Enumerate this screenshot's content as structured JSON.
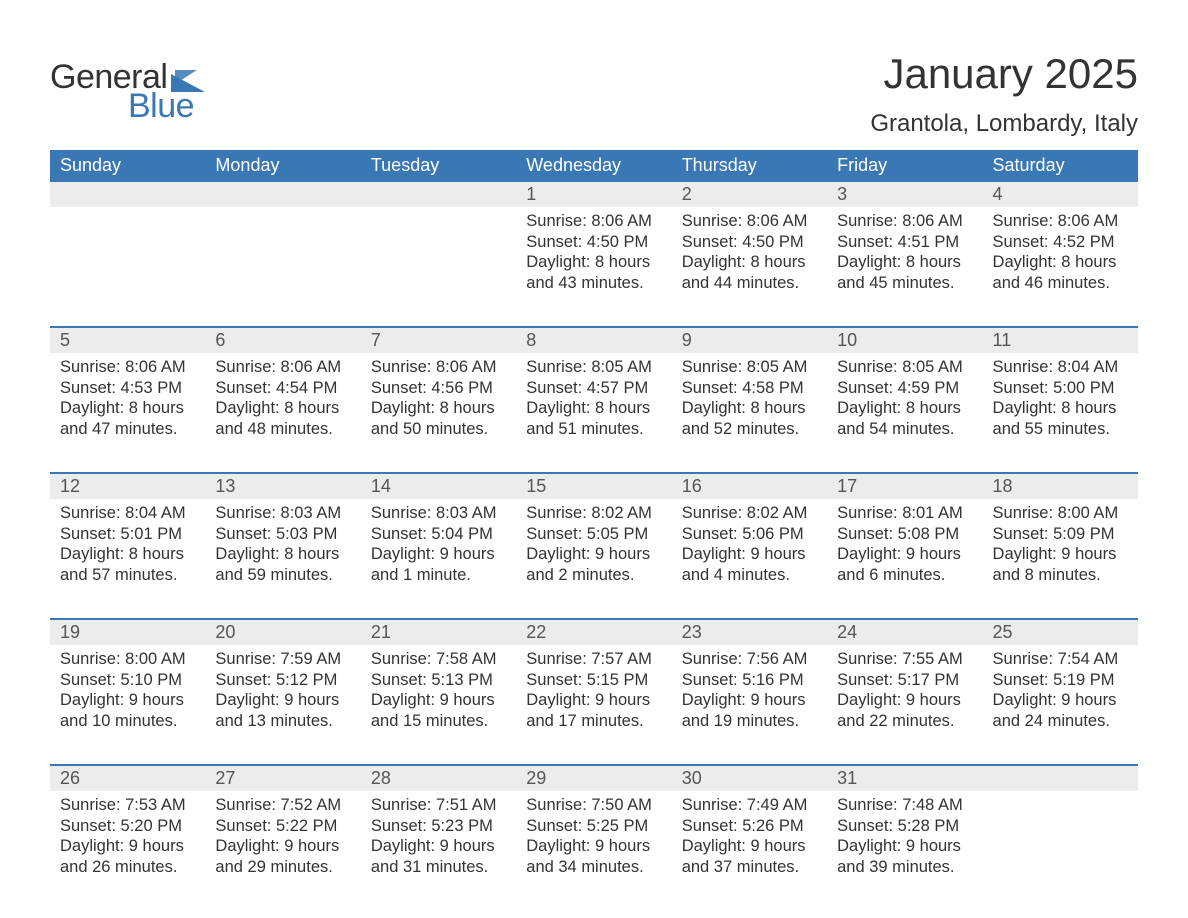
{
  "brand": {
    "part1": "General",
    "part2": "Blue"
  },
  "title": "January 2025",
  "location": "Grantola, Lombardy, Italy",
  "colors": {
    "header_bg": "#3a78b5",
    "header_text": "#ffffff",
    "band_bg": "#ececec",
    "accent": "#3a78b5",
    "text": "#333333",
    "page_bg": "#ffffff"
  },
  "typography": {
    "title_fontsize": 42,
    "location_fontsize": 24,
    "dayhead_fontsize": 18,
    "daynum_fontsize": 18,
    "detail_fontsize": 16.5,
    "font_family": "Arial"
  },
  "layout": {
    "columns": 7,
    "rows": 5,
    "week_top_border": "2px solid #3a78b5"
  },
  "days_of_week": [
    "Sunday",
    "Monday",
    "Tuesday",
    "Wednesday",
    "Thursday",
    "Friday",
    "Saturday"
  ],
  "weeks": [
    [
      null,
      null,
      null,
      {
        "n": "1",
        "sunrise": "Sunrise: 8:06 AM",
        "sunset": "Sunset: 4:50 PM",
        "d1": "Daylight: 8 hours",
        "d2": "and 43 minutes."
      },
      {
        "n": "2",
        "sunrise": "Sunrise: 8:06 AM",
        "sunset": "Sunset: 4:50 PM",
        "d1": "Daylight: 8 hours",
        "d2": "and 44 minutes."
      },
      {
        "n": "3",
        "sunrise": "Sunrise: 8:06 AM",
        "sunset": "Sunset: 4:51 PM",
        "d1": "Daylight: 8 hours",
        "d2": "and 45 minutes."
      },
      {
        "n": "4",
        "sunrise": "Sunrise: 8:06 AM",
        "sunset": "Sunset: 4:52 PM",
        "d1": "Daylight: 8 hours",
        "d2": "and 46 minutes."
      }
    ],
    [
      {
        "n": "5",
        "sunrise": "Sunrise: 8:06 AM",
        "sunset": "Sunset: 4:53 PM",
        "d1": "Daylight: 8 hours",
        "d2": "and 47 minutes."
      },
      {
        "n": "6",
        "sunrise": "Sunrise: 8:06 AM",
        "sunset": "Sunset: 4:54 PM",
        "d1": "Daylight: 8 hours",
        "d2": "and 48 minutes."
      },
      {
        "n": "7",
        "sunrise": "Sunrise: 8:06 AM",
        "sunset": "Sunset: 4:56 PM",
        "d1": "Daylight: 8 hours",
        "d2": "and 50 minutes."
      },
      {
        "n": "8",
        "sunrise": "Sunrise: 8:05 AM",
        "sunset": "Sunset: 4:57 PM",
        "d1": "Daylight: 8 hours",
        "d2": "and 51 minutes."
      },
      {
        "n": "9",
        "sunrise": "Sunrise: 8:05 AM",
        "sunset": "Sunset: 4:58 PM",
        "d1": "Daylight: 8 hours",
        "d2": "and 52 minutes."
      },
      {
        "n": "10",
        "sunrise": "Sunrise: 8:05 AM",
        "sunset": "Sunset: 4:59 PM",
        "d1": "Daylight: 8 hours",
        "d2": "and 54 minutes."
      },
      {
        "n": "11",
        "sunrise": "Sunrise: 8:04 AM",
        "sunset": "Sunset: 5:00 PM",
        "d1": "Daylight: 8 hours",
        "d2": "and 55 minutes."
      }
    ],
    [
      {
        "n": "12",
        "sunrise": "Sunrise: 8:04 AM",
        "sunset": "Sunset: 5:01 PM",
        "d1": "Daylight: 8 hours",
        "d2": "and 57 minutes."
      },
      {
        "n": "13",
        "sunrise": "Sunrise: 8:03 AM",
        "sunset": "Sunset: 5:03 PM",
        "d1": "Daylight: 8 hours",
        "d2": "and 59 minutes."
      },
      {
        "n": "14",
        "sunrise": "Sunrise: 8:03 AM",
        "sunset": "Sunset: 5:04 PM",
        "d1": "Daylight: 9 hours",
        "d2": "and 1 minute."
      },
      {
        "n": "15",
        "sunrise": "Sunrise: 8:02 AM",
        "sunset": "Sunset: 5:05 PM",
        "d1": "Daylight: 9 hours",
        "d2": "and 2 minutes."
      },
      {
        "n": "16",
        "sunrise": "Sunrise: 8:02 AM",
        "sunset": "Sunset: 5:06 PM",
        "d1": "Daylight: 9 hours",
        "d2": "and 4 minutes."
      },
      {
        "n": "17",
        "sunrise": "Sunrise: 8:01 AM",
        "sunset": "Sunset: 5:08 PM",
        "d1": "Daylight: 9 hours",
        "d2": "and 6 minutes."
      },
      {
        "n": "18",
        "sunrise": "Sunrise: 8:00 AM",
        "sunset": "Sunset: 5:09 PM",
        "d1": "Daylight: 9 hours",
        "d2": "and 8 minutes."
      }
    ],
    [
      {
        "n": "19",
        "sunrise": "Sunrise: 8:00 AM",
        "sunset": "Sunset: 5:10 PM",
        "d1": "Daylight: 9 hours",
        "d2": "and 10 minutes."
      },
      {
        "n": "20",
        "sunrise": "Sunrise: 7:59 AM",
        "sunset": "Sunset: 5:12 PM",
        "d1": "Daylight: 9 hours",
        "d2": "and 13 minutes."
      },
      {
        "n": "21",
        "sunrise": "Sunrise: 7:58 AM",
        "sunset": "Sunset: 5:13 PM",
        "d1": "Daylight: 9 hours",
        "d2": "and 15 minutes."
      },
      {
        "n": "22",
        "sunrise": "Sunrise: 7:57 AM",
        "sunset": "Sunset: 5:15 PM",
        "d1": "Daylight: 9 hours",
        "d2": "and 17 minutes."
      },
      {
        "n": "23",
        "sunrise": "Sunrise: 7:56 AM",
        "sunset": "Sunset: 5:16 PM",
        "d1": "Daylight: 9 hours",
        "d2": "and 19 minutes."
      },
      {
        "n": "24",
        "sunrise": "Sunrise: 7:55 AM",
        "sunset": "Sunset: 5:17 PM",
        "d1": "Daylight: 9 hours",
        "d2": "and 22 minutes."
      },
      {
        "n": "25",
        "sunrise": "Sunrise: 7:54 AM",
        "sunset": "Sunset: 5:19 PM",
        "d1": "Daylight: 9 hours",
        "d2": "and 24 minutes."
      }
    ],
    [
      {
        "n": "26",
        "sunrise": "Sunrise: 7:53 AM",
        "sunset": "Sunset: 5:20 PM",
        "d1": "Daylight: 9 hours",
        "d2": "and 26 minutes."
      },
      {
        "n": "27",
        "sunrise": "Sunrise: 7:52 AM",
        "sunset": "Sunset: 5:22 PM",
        "d1": "Daylight: 9 hours",
        "d2": "and 29 minutes."
      },
      {
        "n": "28",
        "sunrise": "Sunrise: 7:51 AM",
        "sunset": "Sunset: 5:23 PM",
        "d1": "Daylight: 9 hours",
        "d2": "and 31 minutes."
      },
      {
        "n": "29",
        "sunrise": "Sunrise: 7:50 AM",
        "sunset": "Sunset: 5:25 PM",
        "d1": "Daylight: 9 hours",
        "d2": "and 34 minutes."
      },
      {
        "n": "30",
        "sunrise": "Sunrise: 7:49 AM",
        "sunset": "Sunset: 5:26 PM",
        "d1": "Daylight: 9 hours",
        "d2": "and 37 minutes."
      },
      {
        "n": "31",
        "sunrise": "Sunrise: 7:48 AM",
        "sunset": "Sunset: 5:28 PM",
        "d1": "Daylight: 9 hours",
        "d2": "and 39 minutes."
      },
      null
    ]
  ]
}
